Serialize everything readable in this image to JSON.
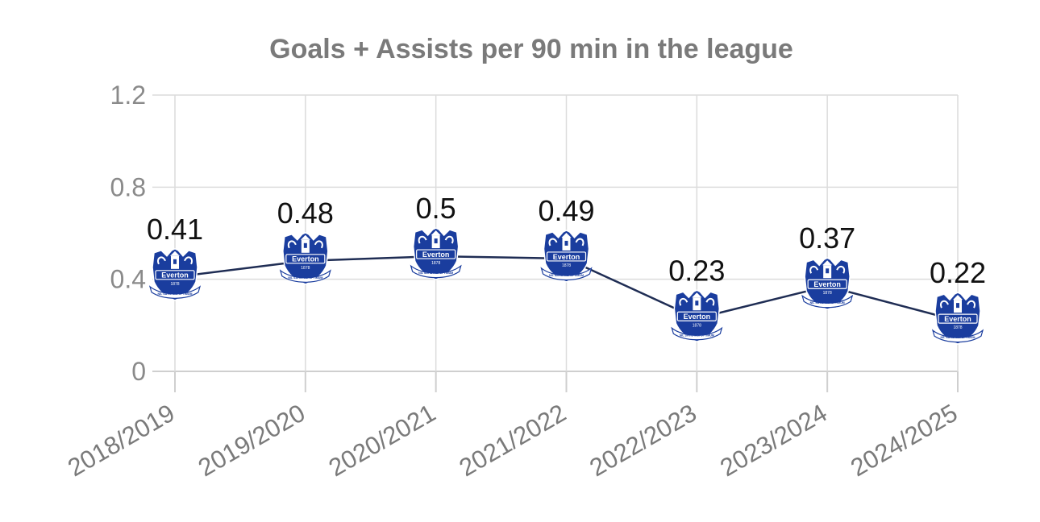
{
  "chart_data": {
    "type": "line",
    "title": "Goals + Assists per 90 min in the league",
    "xlabel": "",
    "ylabel": "",
    "categories": [
      "2018/2019",
      "2019/2020",
      "2020/2021",
      "2021/2022",
      "2022/2023",
      "2023/2024",
      "2024/2025"
    ],
    "series": [
      {
        "values": [
          0.41,
          0.48,
          0.5,
          0.49,
          0.23,
          0.37,
          0.22
        ],
        "data_labels": [
          "0.41",
          "0.48",
          "0.5",
          "0.49",
          "0.23",
          "0.37",
          "0.22"
        ],
        "color": "#1f2d54",
        "marker": "everton-crest-icon"
      }
    ],
    "ylim": [
      0,
      1.2
    ],
    "yticks": [
      0,
      0.4,
      0.8,
      1.2
    ],
    "ytick_labels": [
      "0",
      "0.4",
      "0.8",
      "1.2"
    ],
    "grid": true,
    "legend": "none",
    "colors": {
      "crest_blue": "#1a3d9e",
      "crest_white": "#ffffff",
      "line": "#1f2d54",
      "grid": "#dcdcdc",
      "title": "#7a7a7a"
    },
    "crest_text": {
      "name": "Everton",
      "year": "1878",
      "motto": "NIL SATIS NISI OPTIMUM"
    }
  }
}
